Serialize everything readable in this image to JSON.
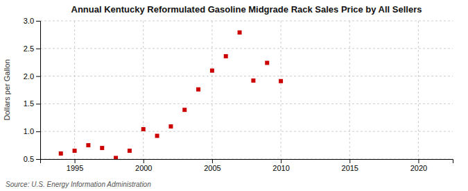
{
  "chart_data": {
    "type": "scatter",
    "title": "Annual Kentucky Reformulated Gasoline Midgrade Rack Sales Price by All Sellers",
    "ylabel": "Dollars per Gallon",
    "source": "Source: U.S. Energy Information Administration",
    "x": [
      1994,
      1995,
      1996,
      1997,
      1998,
      1999,
      2000,
      2001,
      2002,
      2003,
      2004,
      2005,
      2006,
      2007,
      2008,
      2009,
      2010
    ],
    "values": [
      0.6,
      0.65,
      0.75,
      0.7,
      0.52,
      0.65,
      1.04,
      0.92,
      1.09,
      1.39,
      1.76,
      2.1,
      2.36,
      2.79,
      1.92,
      2.24,
      1.91
    ],
    "color": "#cc0000",
    "marker": "square",
    "xlim": [
      1992.5,
      2022.5
    ],
    "ylim": [
      0.5,
      3.0
    ],
    "xticks": [
      1995,
      2000,
      2005,
      2010,
      2015,
      2020
    ],
    "yticks": [
      0.5,
      {
        "value": 1.0,
        "label": "1.0"
      },
      1.5,
      {
        "value": 2.0,
        "label": "2.0"
      },
      2.5,
      {
        "value": 3.0,
        "label": "3.0"
      }
    ],
    "grid": true
  }
}
